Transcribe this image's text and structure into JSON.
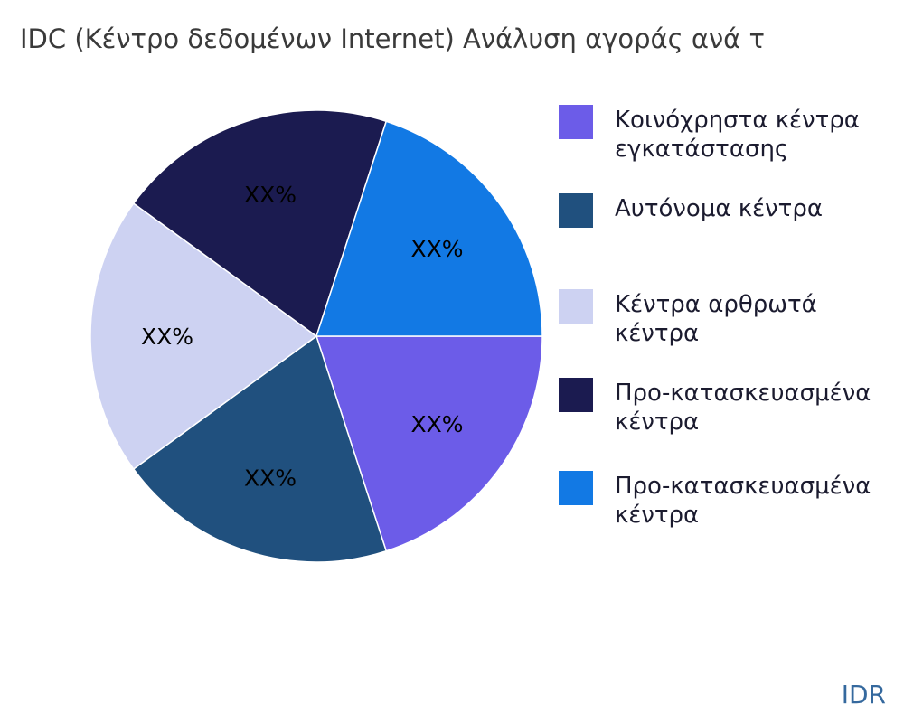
{
  "page": {
    "title": "IDC (Κέντρο δεδομένων Internet) Ανάλυση αγοράς ανά τ",
    "watermark": "IDR",
    "background_color": "#ffffff",
    "title_color": "#3a3a3a",
    "watermark_color": "#35699e"
  },
  "chart_data": {
    "type": "pie",
    "title": "IDC (Κέντρο δεδομένων Internet) Ανάλυση αγοράς ανά τ",
    "start_angle_deg": 0,
    "direction": "clockwise",
    "legend_position": "right",
    "note": "percent values are masked placeholders shown as XX%",
    "slices": [
      {
        "legend_label": "Κοινόχρηστα κέντρα\nεγκατάστασης",
        "percent_label": "XX%",
        "value": 20,
        "color": "#6C5CE8"
      },
      {
        "legend_label": "Αυτόνομα κέντρα",
        "percent_label": "XX%",
        "value": 20,
        "color": "#20507E"
      },
      {
        "legend_label": "Κέντρα αρθρωτά κέντρα",
        "percent_label": "XX%",
        "value": 20,
        "color": "#CDD2F2"
      },
      {
        "legend_label": "Προ-κατασκευασμένα\nκέντρα",
        "percent_label": "XX%",
        "value": 20,
        "color": "#1B1B50"
      },
      {
        "legend_label": "Προ-κατασκευασμένα\nκέντρα",
        "percent_label": "XX%",
        "value": 20,
        "color": "#1279E4"
      }
    ]
  }
}
